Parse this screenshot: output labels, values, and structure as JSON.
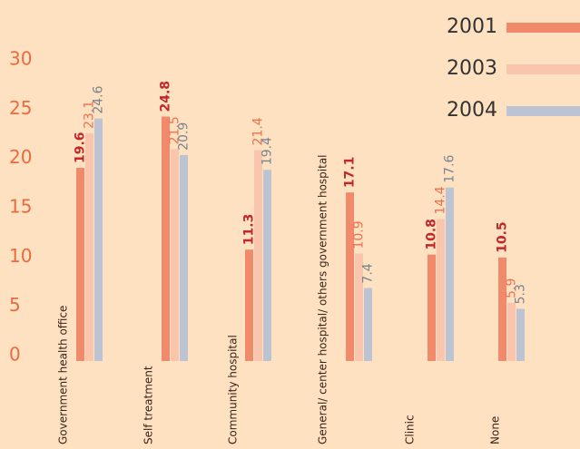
{
  "chart_data": {
    "type": "bar",
    "categories": [
      "Government health office",
      "Self treatment",
      "Community hospital",
      "General/ center hospital/ others government hospital",
      "Clinic",
      "None"
    ],
    "series": [
      {
        "name": "2001",
        "color": "#f08a6a",
        "values": [
          19.6,
          24.8,
          11.3,
          17.1,
          10.8,
          10.5
        ]
      },
      {
        "name": "2003",
        "color": "#f9c6ad",
        "values": [
          23.1,
          21.5,
          21.4,
          10.9,
          14.4,
          5.9
        ]
      },
      {
        "name": "2004",
        "color": "#bcc3d2",
        "values": [
          24.6,
          20.9,
          19.4,
          7.4,
          17.6,
          5.3
        ]
      }
    ],
    "ylim": [
      0,
      30
    ],
    "yticks": [
      0,
      5,
      10,
      15,
      20,
      25,
      30
    ],
    "legend": "top-right"
  }
}
